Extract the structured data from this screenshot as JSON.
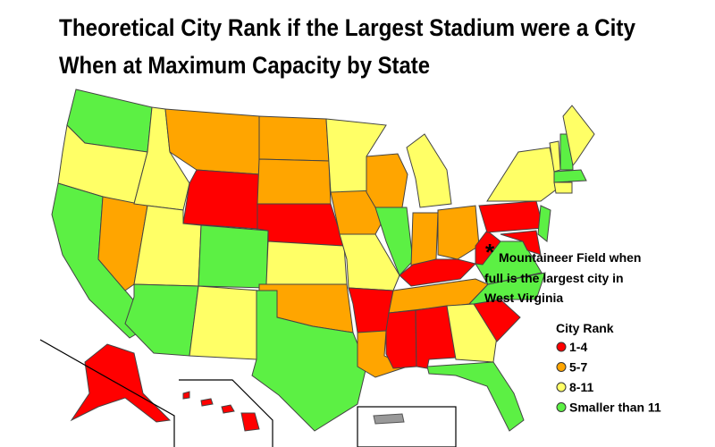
{
  "title": [
    "Theoretical City Rank if the Largest Stadium were a City",
    "When at Maximum Capacity by State"
  ],
  "annotation": {
    "marker": "*",
    "lines": [
      "Mountaineer Field when",
      "full is the largest city in",
      "West Virginia"
    ]
  },
  "legend": {
    "title": "City Rank",
    "items": [
      {
        "label": "1-4",
        "color": "#ff0000"
      },
      {
        "label": "5-7",
        "color": "#ffa500"
      },
      {
        "label": "8-11",
        "color": "#ffff66"
      },
      {
        "label": "Smaller than 11",
        "color": "#5cf044"
      }
    ]
  }
}
